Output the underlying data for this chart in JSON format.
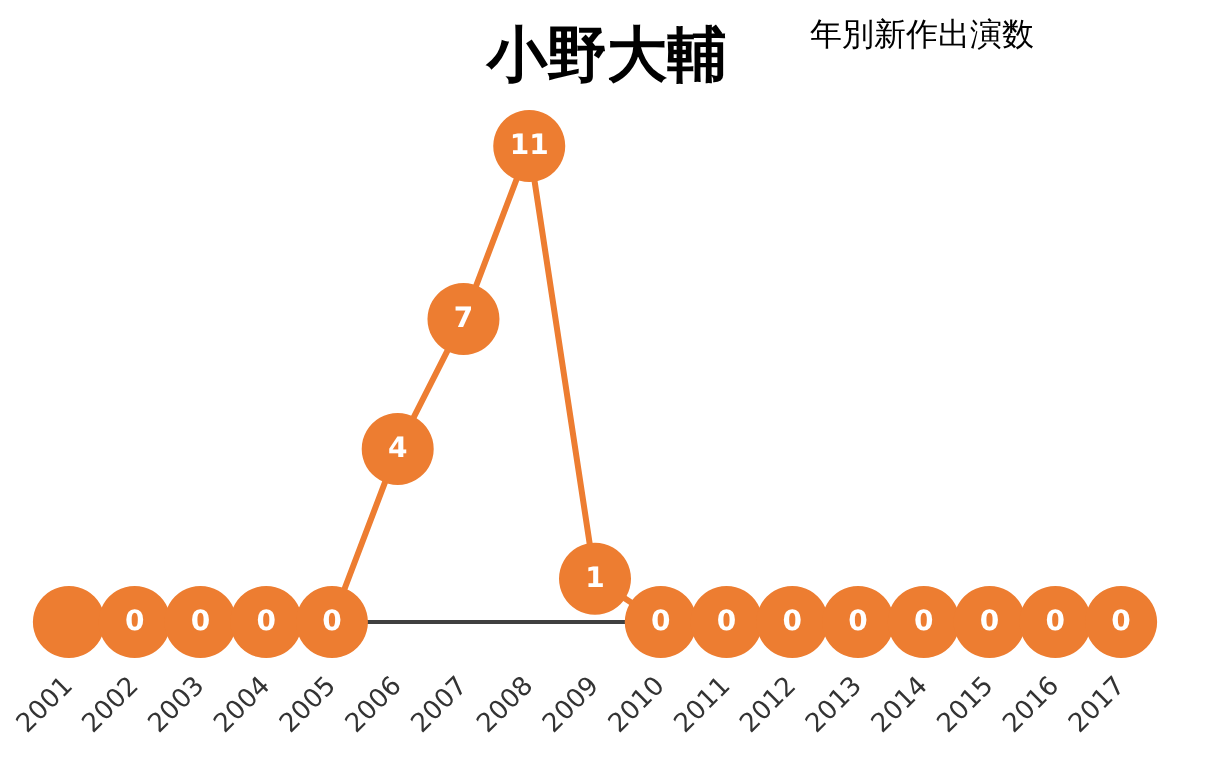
{
  "chart_data": {
    "type": "line",
    "title": "小野大輔",
    "subtitle": "年別新作出演数",
    "categories": [
      "2001",
      "2002",
      "2003",
      "2004",
      "2005",
      "2006",
      "2007",
      "2008",
      "2009",
      "2010",
      "2011",
      "2012",
      "2013",
      "2014",
      "2015",
      "2016",
      "2017"
    ],
    "series": [
      {
        "color": "#ed7d31",
        "values": [
          0,
          0,
          0,
          0,
          0,
          4,
          7,
          11,
          1,
          0,
          0,
          0,
          0,
          0,
          0,
          0,
          0
        ],
        "value_labels": [
          null,
          "0",
          "0",
          "0",
          "0",
          "4",
          "7",
          "11",
          "1",
          "0",
          "0",
          "0",
          "0",
          "0",
          "0",
          "0",
          "0"
        ]
      }
    ],
    "marker": "circle",
    "line_style": "solid",
    "tick_labels": "x"
  }
}
